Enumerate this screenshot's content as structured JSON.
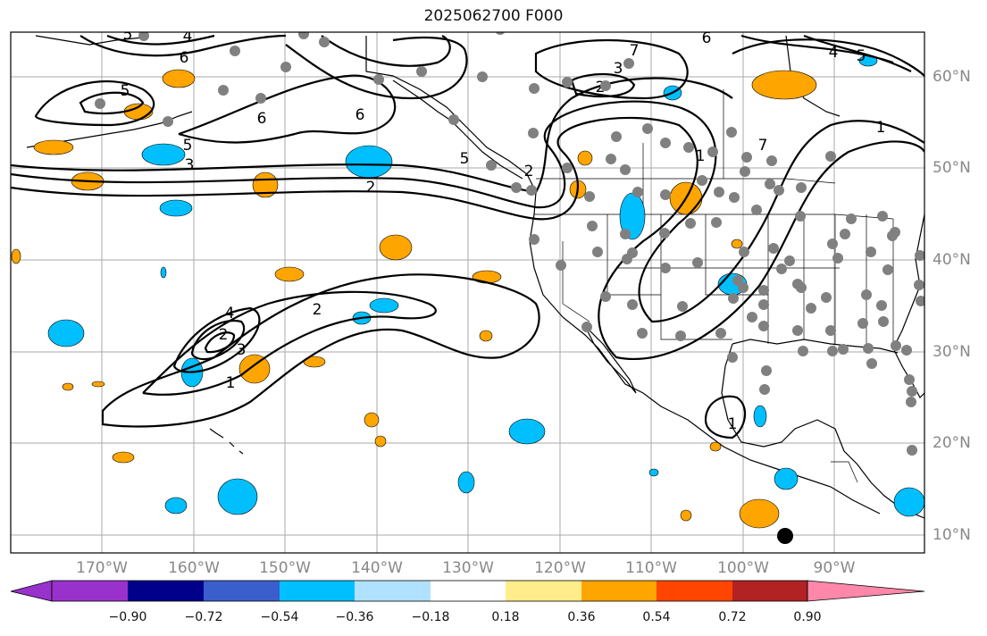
{
  "title": "2025062700 F000",
  "lon_labels": [
    "170°W",
    "160°W",
    "150°W",
    "140°W",
    "130°W",
    "120°W",
    "110°W",
    "100°W",
    "90°W"
  ],
  "lat_labels": [
    "60°N",
    "50°N",
    "40°N",
    "30°N",
    "20°N",
    "10°N"
  ],
  "contour_labels": [
    "5",
    "4",
    "6",
    "5",
    "6",
    "2",
    "3",
    "7",
    "6",
    "4",
    "5",
    "6",
    "5",
    "3",
    "2",
    "5",
    "2",
    "1",
    "7",
    "1",
    "2",
    "4",
    "3",
    "2",
    "1",
    "1"
  ],
  "colorbar": {
    "ticks": [
      "−0.90",
      "−0.72",
      "−0.54",
      "−0.36",
      "−0.18",
      "0.18",
      "0.36",
      "0.54",
      "0.72",
      "0.90"
    ],
    "colors": [
      "#9932cc",
      "#00008b",
      "#3a5fcd",
      "#00bfff",
      "#b0e2ff",
      "#ffffff",
      "#ffec8b",
      "#ffa500",
      "#ff4500",
      "#b22222",
      "#ff88aa"
    ]
  },
  "colors": {
    "positive": "#ffa500",
    "negative": "#00bfff",
    "station": "#808080",
    "contour": "#000000",
    "grid": "#aaaaaa"
  },
  "marker": "storm-center-marker"
}
